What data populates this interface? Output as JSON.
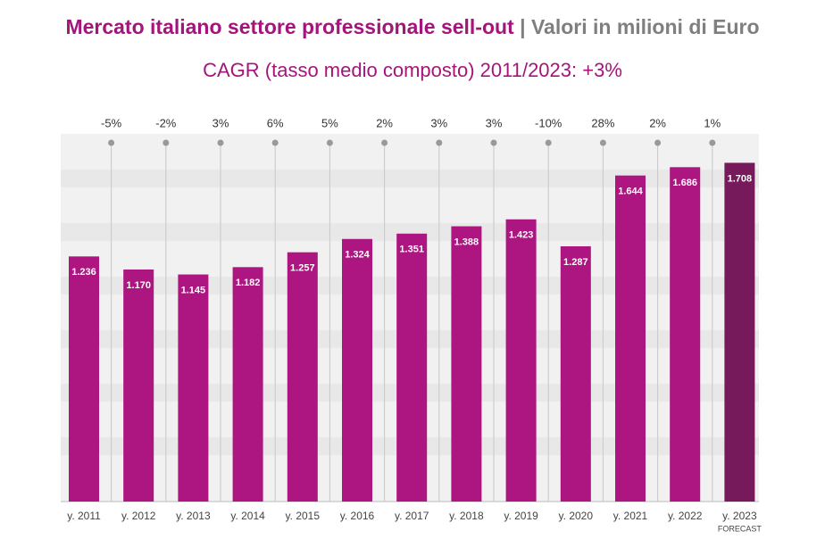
{
  "chart_data": {
    "type": "bar",
    "title": "Mercato italiano settore professionale sell-out",
    "title_note": "| Valori in milioni di Euro",
    "subtitle": "CAGR (tasso medio composto) 2011/2023: +3%",
    "categories": [
      "y. 2011",
      "y. 2012",
      "y. 2013",
      "y. 2014",
      "y. 2015",
      "y. 2016",
      "y. 2017",
      "y. 2018",
      "y. 2019",
      "y. 2020",
      "y. 2021",
      "y. 2022",
      "y. 2023"
    ],
    "values": [
      1236,
      1170,
      1145,
      1182,
      1257,
      1324,
      1351,
      1388,
      1423,
      1287,
      1644,
      1686,
      1708
    ],
    "value_labels": [
      "1.236",
      "1.170",
      "1.145",
      "1.182",
      "1.257",
      "1.324",
      "1.351",
      "1.388",
      "1.423",
      "1.287",
      "1.644",
      "1.686",
      "1.708"
    ],
    "colors": [
      "#ad1580",
      "#ad1580",
      "#ad1580",
      "#ad1580",
      "#ad1580",
      "#ad1580",
      "#ad1580",
      "#ad1580",
      "#ad1580",
      "#ad1580",
      "#ad1580",
      "#ad1580",
      "#761a5c"
    ],
    "forecast_note": "FORECAST",
    "growth": [
      {
        "value": -5,
        "label": "-5%"
      },
      {
        "value": -2,
        "label": "-2%"
      },
      {
        "value": 3,
        "label": "3%"
      },
      {
        "value": 6,
        "label": "6%"
      },
      {
        "value": 5,
        "label": "5%"
      },
      {
        "value": 2,
        "label": "2%"
      },
      {
        "value": 3,
        "label": "3%"
      },
      {
        "value": 3,
        "label": "3%"
      },
      {
        "value": -10,
        "label": "-10%"
      },
      {
        "value": 28,
        "label": "28%"
      },
      {
        "value": 2,
        "label": "2%"
      },
      {
        "value": 1,
        "label": "1%"
      }
    ],
    "ylim": [
      0,
      1800
    ]
  }
}
